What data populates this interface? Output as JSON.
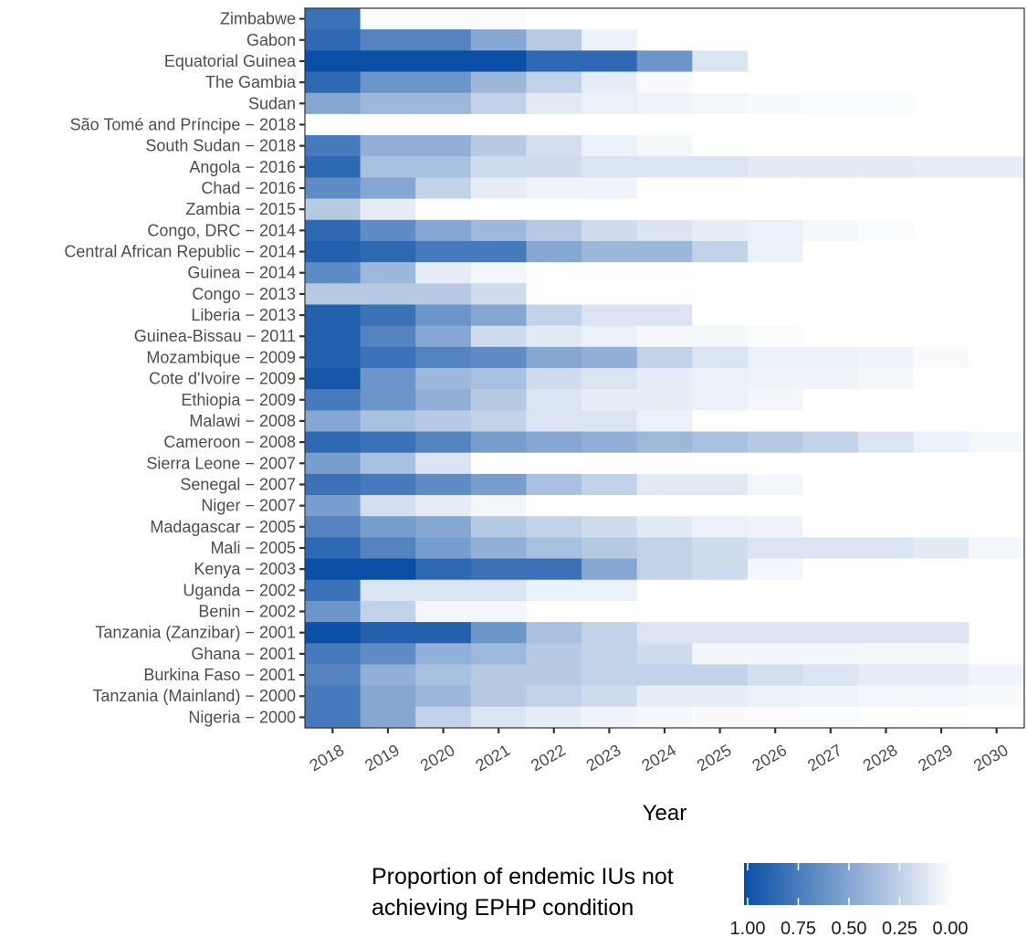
{
  "chart_data": {
    "type": "heatmap",
    "xlabel": "Year",
    "x": [
      "2018",
      "2019",
      "2020",
      "2021",
      "2022",
      "2023",
      "2024",
      "2025",
      "2026",
      "2027",
      "2028",
      "2029",
      "2030"
    ],
    "y": [
      "Zimbabwe",
      "Gabon",
      "Equatorial Guinea",
      "The Gambia",
      "Sudan",
      "São Tomé and Príncipe − 2018",
      "South Sudan − 2018",
      "Angola − 2016",
      "Chad − 2016",
      "Zambia − 2015",
      "Congo, DRC − 2014",
      "Central African Republic − 2014",
      "Guinea − 2014",
      "Congo − 2013",
      "Liberia − 2013",
      "Guinea-Bissau − 2011",
      "Mozambique − 2009",
      "Cote d'Ivoire − 2009",
      "Ethiopia − 2009",
      "Malawi − 2008",
      "Cameroon − 2008",
      "Sierra Leone − 2007",
      "Senegal − 2007",
      "Niger − 2007",
      "Madagascar − 2005",
      "Mali − 2005",
      "Kenya − 2003",
      "Uganda − 2002",
      "Benin − 2002",
      "Tanzania (Zanzibar) − 2001",
      "Ghana − 2001",
      "Burkina Faso − 2001",
      "Tanzania (Mainland) − 2000",
      "Nigeria − 2000"
    ],
    "values": [
      [
        0.8,
        0.02,
        0.02,
        0.02,
        0,
        0,
        0,
        0,
        0,
        0,
        0,
        0,
        0
      ],
      [
        0.85,
        0.7,
        0.7,
        0.5,
        0.3,
        0.08,
        0,
        0,
        0,
        0,
        0,
        0,
        0
      ],
      [
        1.0,
        1.0,
        1.0,
        1.0,
        0.85,
        0.85,
        0.6,
        0.15,
        0,
        0,
        0,
        0,
        0
      ],
      [
        0.85,
        0.6,
        0.6,
        0.4,
        0.25,
        0.1,
        0.03,
        0,
        0,
        0,
        0,
        0,
        0
      ],
      [
        0.5,
        0.4,
        0.4,
        0.25,
        0.12,
        0.08,
        0.06,
        0.04,
        0.03,
        0.02,
        0.02,
        0,
        0
      ],
      [
        0,
        0,
        0,
        0,
        0,
        0,
        0,
        0,
        0,
        0,
        0,
        0,
        0
      ],
      [
        0.75,
        0.45,
        0.45,
        0.3,
        0.18,
        0.08,
        0.04,
        0,
        0,
        0,
        0,
        0,
        0
      ],
      [
        0.85,
        0.35,
        0.35,
        0.2,
        0.2,
        0.15,
        0.15,
        0.15,
        0.12,
        0.12,
        0.12,
        0.1,
        0.1
      ],
      [
        0.65,
        0.5,
        0.25,
        0.1,
        0.06,
        0.06,
        0,
        0,
        0,
        0,
        0,
        0,
        0
      ],
      [
        0.3,
        0.1,
        0,
        0,
        0,
        0,
        0,
        0,
        0,
        0,
        0,
        0,
        0
      ],
      [
        0.85,
        0.65,
        0.5,
        0.4,
        0.3,
        0.2,
        0.15,
        0.1,
        0.08,
        0.04,
        0.02,
        0,
        0
      ],
      [
        0.9,
        0.85,
        0.75,
        0.75,
        0.5,
        0.4,
        0.4,
        0.25,
        0.08,
        0,
        0,
        0,
        0
      ],
      [
        0.65,
        0.4,
        0.1,
        0.05,
        0,
        0,
        0,
        0,
        0,
        0,
        0,
        0,
        0
      ],
      [
        0.3,
        0.3,
        0.3,
        0.2,
        0,
        0,
        0,
        0,
        0,
        0,
        0,
        0,
        0
      ],
      [
        0.9,
        0.8,
        0.6,
        0.5,
        0.25,
        0.15,
        0.15,
        0,
        0,
        0,
        0,
        0,
        0
      ],
      [
        0.9,
        0.7,
        0.5,
        0.2,
        0.12,
        0.08,
        0.04,
        0.04,
        0.02,
        0,
        0,
        0,
        0
      ],
      [
        0.9,
        0.8,
        0.7,
        0.65,
        0.5,
        0.45,
        0.25,
        0.15,
        0.08,
        0.08,
        0.06,
        0.03,
        0
      ],
      [
        0.95,
        0.6,
        0.4,
        0.35,
        0.2,
        0.15,
        0.1,
        0.08,
        0.06,
        0.06,
        0.04,
        0,
        0
      ],
      [
        0.75,
        0.6,
        0.45,
        0.3,
        0.15,
        0.1,
        0.1,
        0.08,
        0.05,
        0,
        0,
        0,
        0
      ],
      [
        0.5,
        0.35,
        0.3,
        0.25,
        0.15,
        0.15,
        0.08,
        0,
        0,
        0,
        0,
        0,
        0
      ],
      [
        0.85,
        0.8,
        0.7,
        0.55,
        0.5,
        0.45,
        0.4,
        0.35,
        0.3,
        0.25,
        0.15,
        0.08,
        0.04
      ],
      [
        0.55,
        0.35,
        0.15,
        0,
        0,
        0,
        0,
        0,
        0,
        0,
        0,
        0,
        0
      ],
      [
        0.8,
        0.75,
        0.65,
        0.55,
        0.35,
        0.25,
        0.12,
        0.12,
        0.05,
        0,
        0,
        0,
        0
      ],
      [
        0.55,
        0.18,
        0.1,
        0.05,
        0,
        0,
        0,
        0,
        0,
        0,
        0,
        0,
        0
      ],
      [
        0.7,
        0.55,
        0.5,
        0.3,
        0.25,
        0.2,
        0.12,
        0.08,
        0.06,
        0,
        0,
        0,
        0
      ],
      [
        0.85,
        0.7,
        0.55,
        0.45,
        0.35,
        0.3,
        0.25,
        0.2,
        0.15,
        0.15,
        0.15,
        0.12,
        0.05
      ],
      [
        1.0,
        1.0,
        0.85,
        0.8,
        0.8,
        0.5,
        0.25,
        0.2,
        0.05,
        0,
        0,
        0,
        0
      ],
      [
        0.8,
        0.15,
        0.15,
        0.15,
        0.08,
        0.08,
        0,
        0,
        0,
        0,
        0,
        0,
        0
      ],
      [
        0.6,
        0.25,
        0.05,
        0.05,
        0,
        0,
        0,
        0,
        0,
        0,
        0,
        0,
        0
      ],
      [
        1.0,
        0.9,
        0.9,
        0.6,
        0.35,
        0.25,
        0.15,
        0.15,
        0.15,
        0.15,
        0.15,
        0.15,
        0
      ],
      [
        0.75,
        0.65,
        0.45,
        0.4,
        0.3,
        0.25,
        0.2,
        0.05,
        0.05,
        0.05,
        0.04,
        0.04,
        0
      ],
      [
        0.7,
        0.45,
        0.35,
        0.3,
        0.3,
        0.25,
        0.25,
        0.25,
        0.18,
        0.15,
        0.1,
        0.1,
        0.06
      ],
      [
        0.75,
        0.5,
        0.4,
        0.3,
        0.25,
        0.2,
        0.1,
        0.1,
        0.08,
        0.06,
        0.05,
        0.05,
        0.03
      ],
      [
        0.75,
        0.5,
        0.25,
        0.15,
        0.1,
        0.06,
        0.04,
        0.03,
        0.02,
        0.02,
        0.01,
        0.01,
        0
      ]
    ],
    "legend": {
      "title_line1": "Proportion of endemic IUs not",
      "title_line2": "achieving EPHP condition",
      "ticks": [
        "1.00",
        "0.75",
        "0.50",
        "0.25",
        "0.00"
      ],
      "tick_values": [
        1.0,
        0.75,
        0.5,
        0.25,
        0.0
      ],
      "placement": "bottom"
    },
    "colors": {
      "high": "#0a4ea5",
      "low": "#ffffff"
    },
    "grid": false
  }
}
